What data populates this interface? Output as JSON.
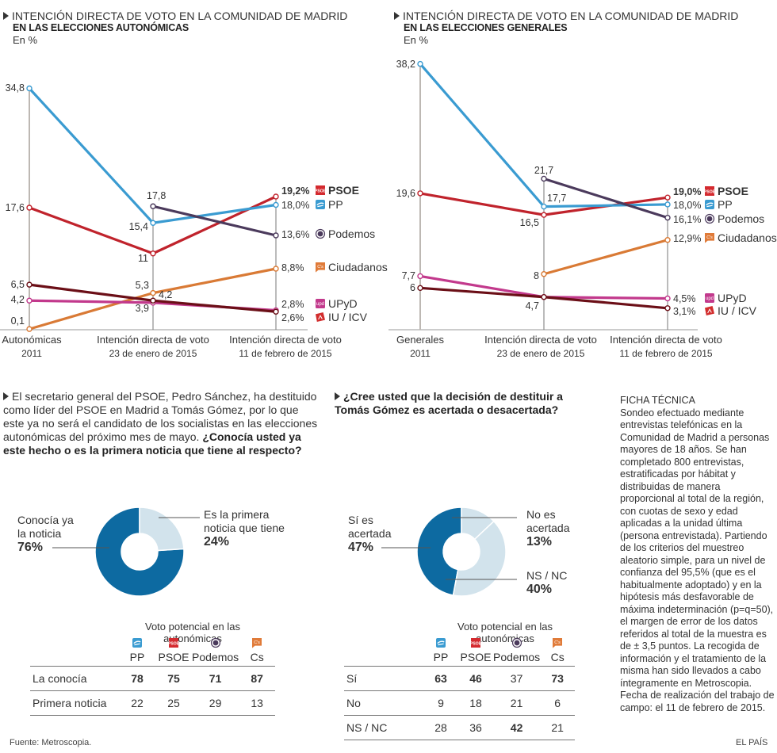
{
  "charts_top": [
    {
      "title": "INTENCIÓN DIRECTA DE VOTO EN LA COMUNIDAD DE MADRID",
      "subtitle": "EN LAS ELECCIONES AUTONÓMICAS",
      "unit": "En %",
      "x_labels": [
        [
          "Autonómicas",
          "2011"
        ],
        [
          "Intención directa de voto",
          "23 de enero de 2015"
        ],
        [
          "Intención directa de voto",
          "11 de febrero de 2015"
        ]
      ]
    },
    {
      "title": "INTENCIÓN DIRECTA DE VOTO EN LA COMUNIDAD DE MADRID",
      "subtitle": "EN LAS ELECCIONES GENERALES",
      "unit": "En %",
      "x_labels": [
        [
          "Generales",
          "2011"
        ],
        [
          "Intención directa de voto",
          "23 de enero de 2015"
        ],
        [
          "Intención directa de voto",
          "11 de febrero de 2015"
        ]
      ]
    }
  ],
  "chart_data": [
    {
      "type": "line",
      "title": "INTENCIÓN DIRECTA DE VOTO EN LA COMUNIDAD DE MADRID — EN LAS ELECCIONES AUTONÓMICAS",
      "ylabel": "En %",
      "categories": [
        "Autonómicas 2011",
        "Intención directa de voto 23 de enero de 2015",
        "Intención directa de voto 11 de febrero de 2015"
      ],
      "ylim": [
        0,
        35
      ],
      "grid": false,
      "series": [
        {
          "name": "PSOE",
          "color": "#c0232c",
          "values": [
            17.6,
            11,
            19.2
          ],
          "labels": [
            "17,6",
            "11",
            "19,2%"
          ],
          "bold_last": true
        },
        {
          "name": "PP",
          "color": "#3a9bd1",
          "values": [
            34.8,
            15.4,
            18.0
          ],
          "labels": [
            "34,8",
            "15,4",
            "18,0%"
          ]
        },
        {
          "name": "Podemos",
          "color": "#4b3a5c",
          "values": [
            null,
            17.8,
            13.6
          ],
          "labels": [
            "",
            "17,8",
            "13,6%"
          ]
        },
        {
          "name": "Ciudadanos",
          "color": "#d97a35",
          "values": [
            0.1,
            5.3,
            8.8
          ],
          "labels": [
            "0,1",
            "5,3",
            "8,8%"
          ]
        },
        {
          "name": "UPyD",
          "color": "#c2398c",
          "values": [
            4.2,
            3.9,
            2.8
          ],
          "labels": [
            "4,2",
            "3,9",
            "2,8%"
          ]
        },
        {
          "name": "IU / ICV",
          "color": "#6b0f17",
          "values": [
            6.5,
            4.2,
            2.6
          ],
          "labels": [
            "6,5",
            "4,2",
            "2,6%"
          ]
        }
      ]
    },
    {
      "type": "line",
      "title": "INTENCIÓN DIRECTA DE VOTO EN LA COMUNIDAD DE MADRID — EN LAS ELECCIONES GENERALES",
      "ylabel": "En %",
      "categories": [
        "Generales 2011",
        "Intención directa de voto 23 de enero de 2015",
        "Intención directa de voto 11 de febrero de 2015"
      ],
      "ylim": [
        0,
        39
      ],
      "grid": false,
      "series": [
        {
          "name": "PSOE",
          "color": "#c0232c",
          "values": [
            19.6,
            16.5,
            19.0
          ],
          "labels": [
            "19,6",
            "16,5",
            "19,0%"
          ],
          "bold_last": true
        },
        {
          "name": "PP",
          "color": "#3a9bd1",
          "values": [
            38.2,
            17.7,
            18.0
          ],
          "labels": [
            "38,2",
            "17,7",
            "18,0%"
          ]
        },
        {
          "name": "Podemos",
          "color": "#4b3a5c",
          "values": [
            null,
            21.7,
            16.1
          ],
          "labels": [
            "",
            "21,7",
            "16,1%"
          ]
        },
        {
          "name": "Ciudadanos",
          "color": "#d97a35",
          "values": [
            null,
            8,
            12.9
          ],
          "labels": [
            "",
            "8",
            "12,9%"
          ]
        },
        {
          "name": "UPyD",
          "color": "#c2398c",
          "values": [
            7.7,
            4.7,
            4.5
          ],
          "labels": [
            "7,7",
            "4,7",
            "4,5%"
          ]
        },
        {
          "name": "IU / ICV",
          "color": "#6b0f17",
          "values": [
            6,
            4.7,
            3.1
          ],
          "labels": [
            "6",
            "",
            "3,1%"
          ]
        }
      ]
    },
    {
      "type": "pie",
      "title": "¿Conocía usted ya este hecho o es la primera noticia que tiene al respecto?",
      "categories": [
        "Conocía ya la noticia",
        "Es la primera noticia que tiene"
      ],
      "values": [
        76,
        24
      ],
      "colors": [
        "#0d6aa1",
        "#d2e3ec"
      ]
    },
    {
      "type": "pie",
      "title": "¿Cree usted que la decisión de destituir a Tomás Gómez es acertada o desacertada?",
      "categories": [
        "Sí es acertada",
        "No es acertada",
        "NS / NC"
      ],
      "values": [
        47,
        13,
        40
      ],
      "colors": [
        "#0d6aa1",
        "#d2e3ec",
        "#d2e3ec"
      ]
    },
    {
      "type": "table",
      "title": "Voto potencial en las autonómicas",
      "columns": [
        "PP",
        "PSOE",
        "Podemos",
        "Cs"
      ],
      "rows": [
        {
          "label": "La conocía",
          "values": [
            78,
            75,
            71,
            87
          ]
        },
        {
          "label": "Primera noticia",
          "values": [
            22,
            25,
            29,
            13
          ]
        }
      ]
    },
    {
      "type": "table",
      "title": "Voto potencial en las autonómicas",
      "columns": [
        "PP",
        "PSOE",
        "Podemos",
        "Cs"
      ],
      "rows": [
        {
          "label": "Sí",
          "values": [
            63,
            46,
            37,
            73
          ]
        },
        {
          "label": "No",
          "values": [
            9,
            18,
            21,
            6
          ]
        },
        {
          "label": "NS / NC",
          "values": [
            28,
            36,
            42,
            21
          ]
        }
      ]
    }
  ],
  "question1": {
    "intro": "El secretario general del PSOE, Pedro Sánchez, ha destituido como líder del PSOE en Madrid a Tomás Gómez, por lo que este ya no será el candidato de los socialistas en las elecciones autonómicas del próximo mes de mayo.",
    "question": "¿Conocía usted ya este hecho o es la primera noticia que tiene al respecto?",
    "pie": {
      "slices": [
        {
          "label_l1": "Conocía ya",
          "label_l2": "la noticia",
          "pct": "76%"
        },
        {
          "label_l1": "Es la primera",
          "label_l2": "noticia que tiene",
          "pct": "24%"
        }
      ]
    },
    "table": {
      "title": "Voto potencial en las autonómicas",
      "columns": [
        "PP",
        "PSOE",
        "Podemos",
        "Cs"
      ],
      "rows": [
        {
          "label": "La conocía",
          "values": [
            "78",
            "75",
            "71",
            "87"
          ],
          "bold": [
            true,
            true,
            true,
            true
          ]
        },
        {
          "label": "Primera noticia",
          "values": [
            "22",
            "25",
            "29",
            "13"
          ],
          "bold": [
            false,
            false,
            false,
            false
          ]
        }
      ]
    }
  },
  "question2": {
    "question": "¿Cree usted que la decisión de destituir a Tomás Gómez es acertada o desacertada?",
    "pie": {
      "slices": [
        {
          "label_l1": "Sí es",
          "label_l2": "acertada",
          "pct": "47%"
        },
        {
          "label_l1": "No es",
          "label_l2": "acertada",
          "pct": "13%"
        },
        {
          "label_l1": "NS / NC",
          "label_l2": "",
          "pct": "40%"
        }
      ]
    },
    "table": {
      "title": "Voto potencial en las autonómicas",
      "columns": [
        "PP",
        "PSOE",
        "Podemos",
        "Cs"
      ],
      "rows": [
        {
          "label": "Sí",
          "values": [
            "63",
            "46",
            "37",
            "73"
          ],
          "bold": [
            true,
            true,
            false,
            true
          ]
        },
        {
          "label": "No",
          "values": [
            "9",
            "18",
            "21",
            "6"
          ],
          "bold": [
            false,
            false,
            false,
            false
          ]
        },
        {
          "label": "NS / NC",
          "values": [
            "28",
            "36",
            "42",
            "21"
          ],
          "bold": [
            false,
            false,
            true,
            false
          ]
        }
      ]
    }
  },
  "ficha": {
    "title": "FICHA TÉCNICA",
    "body": "Sondeo efectuado mediante entrevistas telefónicas en la Comunidad de Madrid a personas mayores de 18 años. Se han completado 800 entrevistas, estratificadas por hábitat y distribuidas de manera proporcional al total de la región, con cuotas de sexo y edad aplicadas a la unidad última (persona entrevistada). Partiendo de los criterios del muestreo aleatorio simple, para un nivel de confianza del 95,5% (que es el habitualmente adoptado) y en la hipótesis más desfavorable de máxima indeterminación (p=q=50), el margen de error de los datos referidos al total de la muestra es de ± 3,5 puntos. La recogida de información y el tratamiento de la misma han sido llevados a cabo íntegramente en Metroscopia. Fecha de realización del trabajo de campo: el 11 de febrero de 2015."
  },
  "footer": {
    "source": "Fuente: Metroscopia.",
    "brand": "EL PAÍS"
  },
  "party_icons": {
    "PSOE": {
      "icon": "psoe-logo-icon",
      "color": "#d42a2f",
      "text": "PSOE"
    },
    "PP": {
      "icon": "pp-logo-icon",
      "color": "#3a9bd1"
    },
    "Podemos": {
      "icon": "podemos-logo-icon",
      "color": "#4b3a5c"
    },
    "Ciudadanos": {
      "icon": "ciudadanos-logo-icon",
      "color": "#e07b39",
      "text": "C's"
    },
    "UPyD": {
      "icon": "upyd-logo-icon",
      "color": "#c2398c",
      "text": "upd"
    },
    "IU / ICV": {
      "icon": "iu-logo-icon",
      "color": "#d22d2d"
    }
  }
}
